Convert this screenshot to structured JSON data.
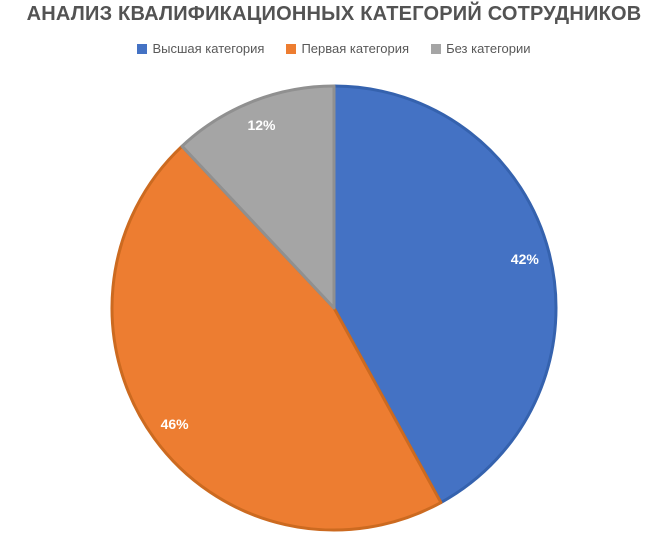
{
  "title": "АНАЛИЗ КВАЛИФИКАЦИОННЫХ КАТЕГОРИЙ СОТРУДНИКОВ",
  "chart_data": {
    "type": "pie",
    "title": "АНАЛИЗ КВАЛИФИКАЦИОННЫХ КАТЕГОРИЙ СОТРУДНИКОВ",
    "legend_position": "top",
    "start_angle_deg": 0,
    "direction": "clockwise",
    "slices": [
      {
        "label": "Высшая категория",
        "value": 42,
        "display": "42%",
        "color": "#4472C4",
        "border_color": "#3562AE"
      },
      {
        "label": "Первая категория",
        "value": 46,
        "display": "46%",
        "color": "#ED7D31",
        "border_color": "#CC6A20"
      },
      {
        "label": "Без категории",
        "value": 12,
        "display": "12%",
        "color": "#A5A5A5",
        "border_color": "#909090"
      }
    ],
    "data_labels": {
      "color": "#FFFFFF",
      "format": "percent"
    }
  },
  "styles": {
    "background": "#FFFFFF",
    "title_color": "#535353",
    "legend_text_color": "#595959"
  }
}
